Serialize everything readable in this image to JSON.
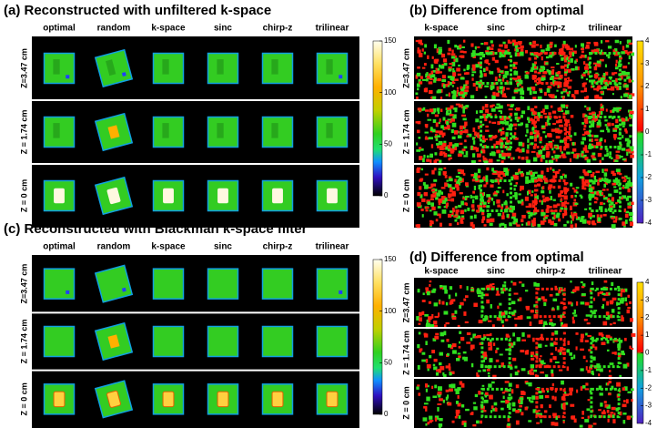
{
  "panels": [
    {
      "title": "(a) Reconstructed with unfiltered k-space",
      "columns": [
        "optimal",
        "random",
        "k-space",
        "sinc",
        "chirp-z",
        "trilinear"
      ],
      "rows": [
        "Z=3.47 cm",
        "Z = 1.74 cm",
        "Z = 0 cm"
      ],
      "colorbar_ticks": [
        "150",
        "100",
        "50",
        "0"
      ]
    },
    {
      "title": "(b) Difference from optimal",
      "columns": [
        "k-space",
        "sinc",
        "chirp-z",
        "trilinear"
      ],
      "rows": [
        "Z=3.47 cm",
        "Z = 1.74 cm",
        "Z = 0 cm"
      ],
      "colorbar_ticks": [
        "4",
        "3",
        "2",
        "1",
        "0",
        "-1",
        "-2",
        "-3",
        "-4"
      ]
    },
    {
      "title": "(c) Reconstructed with Blackman k-space filter",
      "columns": [
        "optimal",
        "random",
        "k-space",
        "sinc",
        "chirp-z",
        "trilinear"
      ],
      "rows": [
        "Z=3.47 cm",
        "Z = 1.74 cm",
        "Z = 0 cm"
      ],
      "colorbar_ticks": [
        "150",
        "100",
        "50",
        "0"
      ]
    },
    {
      "title": "(d) Difference from optimal",
      "columns": [
        "k-space",
        "sinc",
        "chirp-z",
        "trilinear"
      ],
      "rows": [
        "Z=3.47 cm",
        "Z = 1.74 cm",
        "Z = 0 cm"
      ],
      "colorbar_ticks": [
        "4",
        "3",
        "2",
        "1",
        "0",
        "-1",
        "-2",
        "-3",
        "-4"
      ]
    }
  ]
}
